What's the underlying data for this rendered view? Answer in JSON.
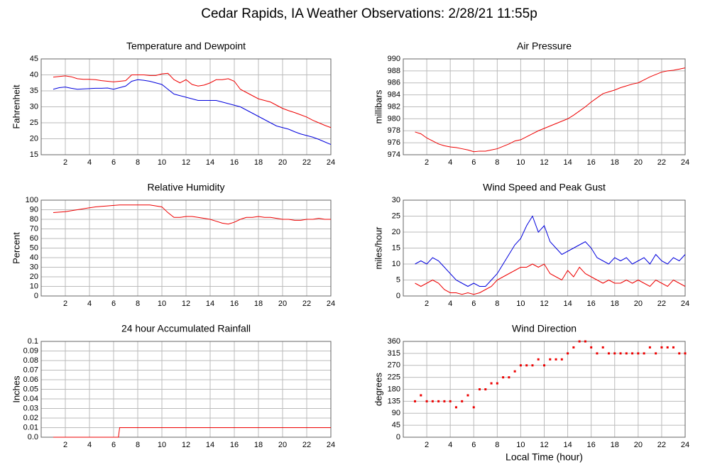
{
  "title": "Cedar Rapids, IA Weather Observations: 2/28/21 11:55p",
  "chart_data": [
    {
      "type": "line",
      "title": "Temperature and Dewpoint",
      "ylabel": "Fahrenheit",
      "grid": true,
      "x": [
        1,
        1.5,
        2,
        2.5,
        3,
        3.5,
        4,
        4.5,
        5,
        5.5,
        6,
        6.5,
        7,
        7.5,
        8,
        8.5,
        9,
        9.5,
        10,
        10.5,
        11,
        11.5,
        12,
        12.5,
        13,
        13.5,
        14,
        14.5,
        15,
        15.5,
        16,
        16.5,
        17,
        17.5,
        18,
        18.5,
        19,
        19.5,
        20,
        20.5,
        21,
        21.5,
        22,
        22.5,
        23,
        23.5,
        24
      ],
      "series": [
        {
          "color": "#ee0000",
          "values": [
            39.3,
            39.5,
            39.7,
            39.4,
            38.8,
            38.6,
            38.6,
            38.5,
            38.2,
            38.0,
            37.8,
            38.0,
            38.2,
            40.0,
            40.0,
            40.0,
            39.8,
            39.8,
            40.3,
            40.5,
            38.5,
            37.5,
            38.5,
            37.0,
            36.5,
            36.8,
            37.5,
            38.5,
            38.5,
            38.8,
            38.0,
            35.5,
            34.5,
            33.5,
            32.5,
            32.0,
            31.5,
            30.5,
            29.5,
            28.8,
            28.2,
            27.5,
            26.8,
            25.8,
            25.0,
            24.2,
            23.5
          ]
        },
        {
          "color": "#0000dd",
          "values": [
            35.5,
            36.0,
            36.2,
            35.8,
            35.5,
            35.6,
            35.7,
            35.8,
            35.8,
            35.9,
            35.5,
            36.0,
            36.5,
            38.0,
            38.5,
            38.3,
            38.0,
            37.5,
            37.0,
            35.5,
            34.0,
            33.5,
            33.0,
            32.5,
            32.0,
            32.0,
            32.0,
            32.0,
            31.5,
            31.0,
            30.5,
            30.0,
            29.0,
            28.0,
            27.0,
            26.0,
            25.0,
            24.0,
            23.5,
            23.0,
            22.2,
            21.5,
            21.0,
            20.5,
            19.8,
            19.0,
            18.2
          ]
        }
      ],
      "xlim": [
        0,
        24
      ],
      "xticks": [
        2,
        4,
        6,
        8,
        10,
        12,
        14,
        16,
        18,
        20,
        22,
        24
      ],
      "ylim": [
        15,
        45
      ],
      "yticks": [
        15,
        20,
        25,
        30,
        35,
        40,
        45
      ]
    },
    {
      "type": "line",
      "title": "Air Pressure",
      "ylabel": "millibars",
      "grid": true,
      "x": [
        1,
        1.5,
        2,
        2.5,
        3,
        3.5,
        4,
        4.5,
        5,
        5.5,
        6,
        6.5,
        7,
        7.5,
        8,
        8.5,
        9,
        9.5,
        10,
        10.5,
        11,
        11.5,
        12,
        12.5,
        13,
        13.5,
        14,
        14.5,
        15,
        15.5,
        16,
        16.5,
        17,
        17.5,
        18,
        18.5,
        19,
        19.5,
        20,
        20.5,
        21,
        21.5,
        22,
        22.5,
        23,
        23.5,
        24
      ],
      "series": [
        {
          "color": "#ee0000",
          "values": [
            977.8,
            977.5,
            976.8,
            976.3,
            975.8,
            975.5,
            975.3,
            975.2,
            975.0,
            974.8,
            974.5,
            974.6,
            974.6,
            974.8,
            975.0,
            975.4,
            975.8,
            976.3,
            976.5,
            977.0,
            977.5,
            978.0,
            978.4,
            978.8,
            979.2,
            979.6,
            980.0,
            980.6,
            981.3,
            982.0,
            982.8,
            983.5,
            984.2,
            984.5,
            984.8,
            985.2,
            985.5,
            985.8,
            986.0,
            986.5,
            987.0,
            987.4,
            987.8,
            988.0,
            988.1,
            988.3,
            988.5
          ]
        }
      ],
      "xlim": [
        0,
        24
      ],
      "xticks": [
        2,
        4,
        6,
        8,
        10,
        12,
        14,
        16,
        18,
        20,
        22,
        24
      ],
      "ylim": [
        974,
        990
      ],
      "yticks": [
        974,
        976,
        978,
        980,
        982,
        984,
        986,
        988,
        990
      ]
    },
    {
      "type": "line",
      "title": "Relative Humidity",
      "ylabel": "Percent",
      "grid": true,
      "x": [
        1,
        1.5,
        2,
        2.5,
        3,
        3.5,
        4,
        4.5,
        5,
        5.5,
        6,
        6.5,
        7,
        7.5,
        8,
        8.5,
        9,
        9.5,
        10,
        10.5,
        11,
        11.5,
        12,
        12.5,
        13,
        13.5,
        14,
        14.5,
        15,
        15.5,
        16,
        16.5,
        17,
        17.5,
        18,
        18.5,
        19,
        19.5,
        20,
        20.5,
        21,
        21.5,
        22,
        22.5,
        23,
        23.5,
        24
      ],
      "series": [
        {
          "color": "#ee0000",
          "values": [
            87,
            87.5,
            88,
            89,
            90,
            91,
            92,
            93,
            93.5,
            94,
            94.5,
            95,
            95,
            95,
            95,
            95,
            95,
            94,
            93,
            87,
            82,
            82,
            83,
            83,
            82,
            81,
            80,
            78,
            76,
            75,
            77,
            80,
            82,
            82,
            83,
            82,
            82,
            81,
            80,
            80,
            79,
            79,
            80,
            80,
            81,
            80,
            80
          ]
        }
      ],
      "xlim": [
        0,
        24
      ],
      "xticks": [
        2,
        4,
        6,
        8,
        10,
        12,
        14,
        16,
        18,
        20,
        22,
        24
      ],
      "ylim": [
        0,
        100
      ],
      "yticks": [
        0,
        10,
        20,
        30,
        40,
        50,
        60,
        70,
        80,
        90,
        100
      ]
    },
    {
      "type": "line",
      "title": "Wind Speed and Peak Gust",
      "ylabel": "miles/hour",
      "grid": true,
      "x": [
        1,
        1.5,
        2,
        2.5,
        3,
        3.5,
        4,
        4.5,
        5,
        5.5,
        6,
        6.5,
        7,
        7.5,
        8,
        8.5,
        9,
        9.5,
        10,
        10.5,
        11,
        11.5,
        12,
        12.5,
        13,
        13.5,
        14,
        14.5,
        15,
        15.5,
        16,
        16.5,
        17,
        17.5,
        18,
        18.5,
        19,
        19.5,
        20,
        20.5,
        21,
        21.5,
        22,
        22.5,
        23,
        23.5,
        24
      ],
      "series": [
        {
          "color": "#0000dd",
          "values": [
            10,
            11,
            10,
            12,
            11,
            9,
            7,
            5,
            4,
            3,
            4,
            3,
            3,
            5,
            7,
            10,
            13,
            16,
            18,
            22,
            25,
            20,
            22,
            17,
            15,
            13,
            14,
            15,
            16,
            17,
            15,
            12,
            11,
            10,
            12,
            11,
            12,
            10,
            11,
            12,
            10,
            13,
            11,
            10,
            12,
            11,
            13
          ]
        },
        {
          "color": "#ee0000",
          "values": [
            4,
            3,
            4,
            5,
            4,
            2,
            1,
            1,
            0.5,
            1,
            0.5,
            1,
            2,
            3,
            5,
            6,
            7,
            8,
            9,
            9,
            10,
            9,
            10,
            7,
            6,
            5,
            8,
            6,
            9,
            7,
            6,
            5,
            4,
            5,
            4,
            4,
            5,
            4,
            5,
            4,
            3,
            5,
            4,
            3,
            5,
            4,
            3
          ]
        }
      ],
      "xlim": [
        0,
        24
      ],
      "xticks": [
        2,
        4,
        6,
        8,
        10,
        12,
        14,
        16,
        18,
        20,
        22,
        24
      ],
      "ylim": [
        0,
        30
      ],
      "yticks": [
        0,
        5,
        10,
        15,
        20,
        25,
        30
      ]
    },
    {
      "type": "line",
      "title": "24 hour Accumulated Rainfall",
      "ylabel": "Inches",
      "grid": true,
      "x": [
        1,
        6.4,
        6.5,
        24
      ],
      "series": [
        {
          "color": "#ee0000",
          "values": [
            0,
            0,
            0.01,
            0.01
          ]
        }
      ],
      "xlim": [
        0,
        24
      ],
      "xticks": [
        2,
        4,
        6,
        8,
        10,
        12,
        14,
        16,
        18,
        20,
        22,
        24
      ],
      "ylim": [
        0,
        0.1
      ],
      "yticks": [
        {
          "value": 0,
          "label": "0.0"
        },
        0.01,
        0.02,
        0.03,
        0.04,
        0.05,
        0.06,
        0.07,
        0.08,
        0.09,
        0.1
      ]
    },
    {
      "type": "scatter",
      "title": "Wind Direction",
      "ylabel": "degrees",
      "xlabel": "Local Time (hour)",
      "grid": true,
      "x": [
        1,
        1.5,
        2,
        2.5,
        3,
        3.5,
        4,
        4.5,
        5,
        5.5,
        6,
        6.5,
        7,
        7.5,
        8,
        8.5,
        9,
        9.5,
        10,
        10.5,
        11,
        11.5,
        12,
        12.5,
        13,
        13.5,
        14,
        14.5,
        15,
        15.5,
        16,
        16.5,
        17,
        17.5,
        18,
        18.5,
        19,
        19.5,
        20,
        20.5,
        21,
        21.5,
        22,
        22.5,
        23,
        23.5,
        24
      ],
      "series": [
        {
          "color": "#ee0000",
          "values": [
            135,
            157.5,
            135,
            135,
            135,
            135,
            135,
            112.5,
            135,
            157.5,
            112.5,
            180,
            180,
            202.5,
            202.5,
            225,
            225,
            247.5,
            270,
            270,
            270,
            292.5,
            270,
            292.5,
            292.5,
            292.5,
            315,
            337.5,
            360,
            360,
            337.5,
            315,
            337.5,
            315,
            315,
            315,
            315,
            315,
            315,
            315,
            337.5,
            315,
            337.5,
            337.5,
            337.5,
            315,
            315
          ]
        }
      ],
      "xlim": [
        0,
        24
      ],
      "xticks": [
        2,
        4,
        6,
        8,
        10,
        12,
        14,
        16,
        18,
        20,
        22,
        24
      ],
      "ylim": [
        0,
        360
      ],
      "yticks": [
        0,
        45,
        90,
        135,
        180,
        225,
        270,
        315,
        360
      ]
    }
  ]
}
